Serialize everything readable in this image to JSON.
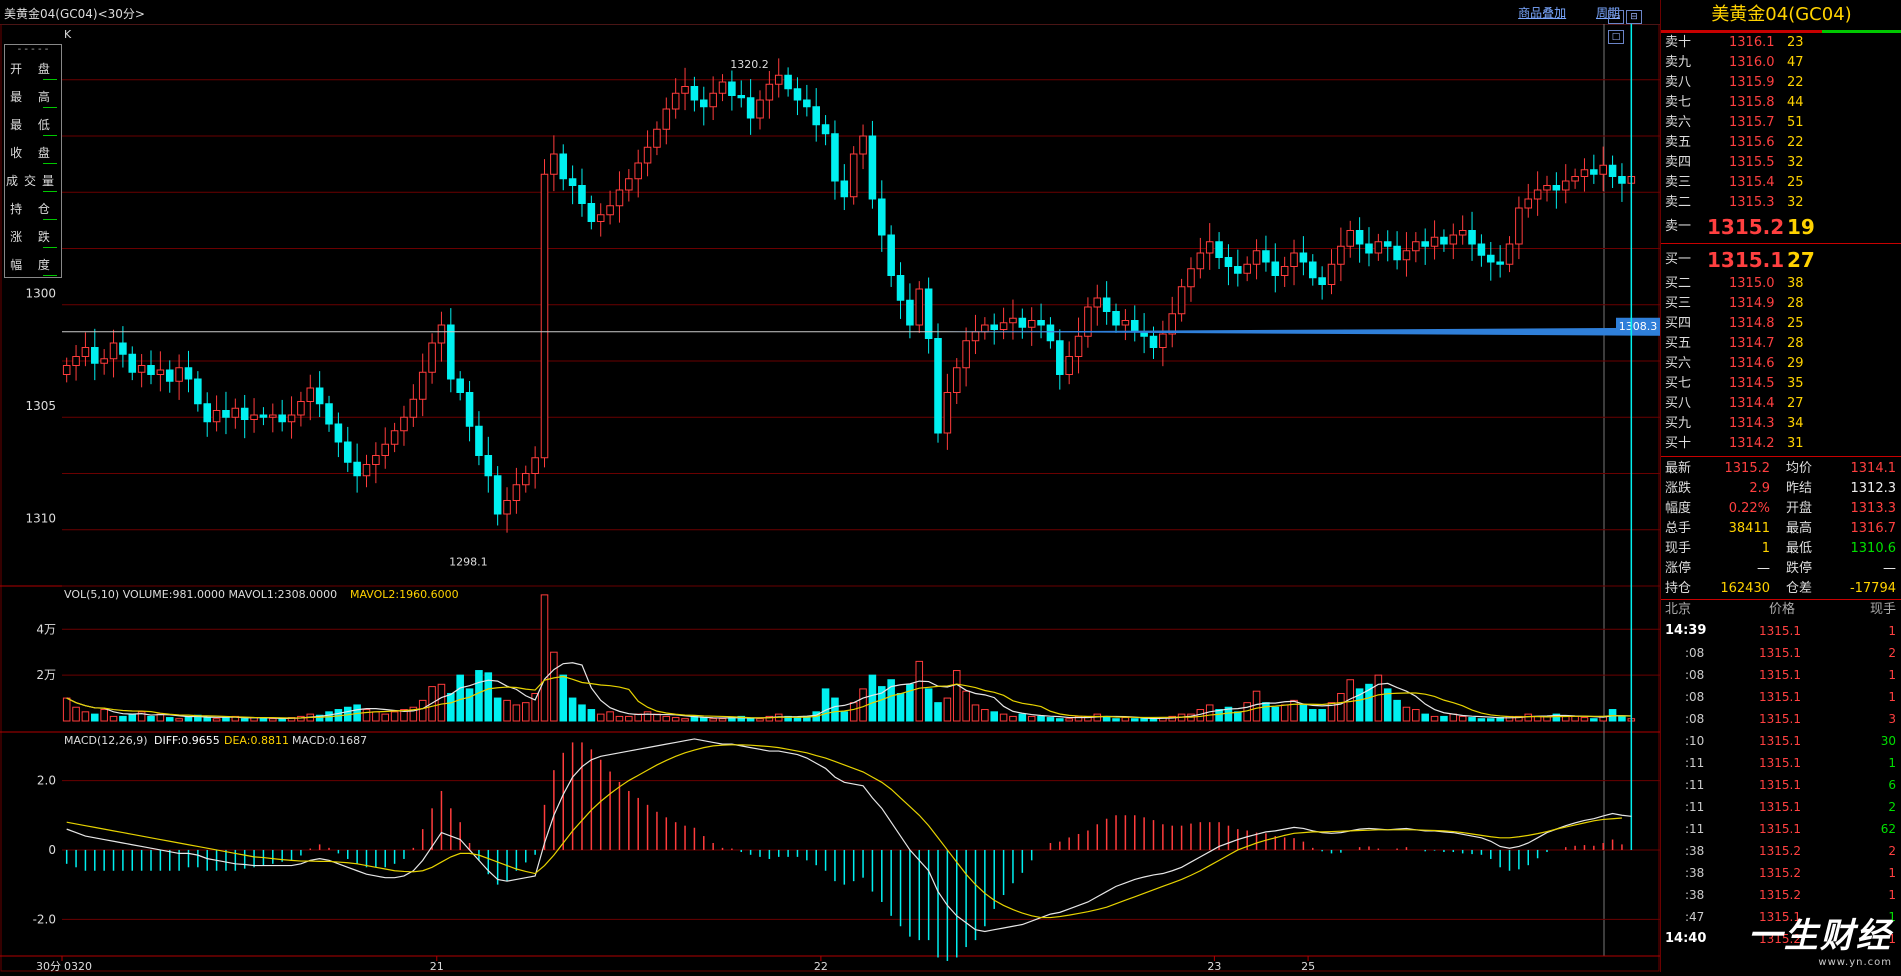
{
  "window": {
    "title": "美黄金04(GC04)<30分>",
    "link_overlay": "商品叠加",
    "link_period": "周期"
  },
  "legend": {
    "items": [
      "开 盘",
      "最 高",
      "最 低",
      "收 盘",
      "成交量",
      "持 仓",
      "涨 跌",
      "幅 度"
    ]
  },
  "main_chart": {
    "label": "K",
    "high_label": "1320.2",
    "low_label": "1298.1",
    "price_marker": "1308.3",
    "y_ticks": [
      "1310",
      "1305",
      "1300"
    ]
  },
  "volume_panel": {
    "header_a": "VOL(5,10) VOLUME:981.0000 MAVOL1:2308.0000",
    "header_b": "MAVOL2:1960.6000",
    "y_ticks": [
      "4万",
      "2万"
    ]
  },
  "macd_panel": {
    "header_a": "MACD(12,26,9)",
    "header_b": "DIFF:0.9655",
    "header_c": "DEA:0.8811",
    "header_d": "MACD:0.1687",
    "y_ticks": [
      "2.0",
      "0",
      "-2.0"
    ]
  },
  "x_axis": {
    "period": "30分",
    "labels": [
      "0320",
      "21",
      "22",
      "23",
      "25"
    ]
  },
  "quote": {
    "title": "美黄金04(GC04)",
    "asks": [
      {
        "label": "卖十",
        "price": "1316.1",
        "vol": "23"
      },
      {
        "label": "卖九",
        "price": "1316.0",
        "vol": "47"
      },
      {
        "label": "卖八",
        "price": "1315.9",
        "vol": "22"
      },
      {
        "label": "卖七",
        "price": "1315.8",
        "vol": "44"
      },
      {
        "label": "卖六",
        "price": "1315.7",
        "vol": "51"
      },
      {
        "label": "卖五",
        "price": "1315.6",
        "vol": "22"
      },
      {
        "label": "卖四",
        "price": "1315.5",
        "vol": "32"
      },
      {
        "label": "卖三",
        "price": "1315.4",
        "vol": "25"
      },
      {
        "label": "卖二",
        "price": "1315.3",
        "vol": "32"
      },
      {
        "label": "卖一",
        "price": "1315.2",
        "vol": "19"
      }
    ],
    "bids": [
      {
        "label": "买一",
        "price": "1315.1",
        "vol": "27"
      },
      {
        "label": "买二",
        "price": "1315.0",
        "vol": "38"
      },
      {
        "label": "买三",
        "price": "1314.9",
        "vol": "28"
      },
      {
        "label": "买四",
        "price": "1314.8",
        "vol": "25"
      },
      {
        "label": "买五",
        "price": "1314.7",
        "vol": "28"
      },
      {
        "label": "买六",
        "price": "1314.6",
        "vol": "29"
      },
      {
        "label": "买七",
        "price": "1314.5",
        "vol": "35"
      },
      {
        "label": "买八",
        "price": "1314.4",
        "vol": "27"
      },
      {
        "label": "买九",
        "price": "1314.3",
        "vol": "34"
      },
      {
        "label": "买十",
        "price": "1314.2",
        "vol": "31"
      }
    ],
    "stats": [
      {
        "l1": "最新",
        "v1": "1315.2",
        "c1": "red",
        "l2": "均价",
        "v2": "1314.1",
        "c2": "red"
      },
      {
        "l1": "涨跌",
        "v1": "2.9",
        "c1": "red",
        "l2": "昨结",
        "v2": "1312.3",
        "c2": "wht"
      },
      {
        "l1": "幅度",
        "v1": "0.22%",
        "c1": "red",
        "l2": "开盘",
        "v2": "1313.3",
        "c2": "red"
      },
      {
        "l1": "总手",
        "v1": "38411",
        "c1": "yel",
        "l2": "最高",
        "v2": "1316.7",
        "c2": "red"
      },
      {
        "l1": "现手",
        "v1": "1",
        "c1": "yel",
        "l2": "最低",
        "v2": "1310.6",
        "c2": "grn"
      },
      {
        "l1": "涨停",
        "v1": "—",
        "c1": "wht",
        "l2": "跌停",
        "v2": "—",
        "c2": "wht"
      },
      {
        "l1": "持仓",
        "v1": "162430",
        "c1": "yel",
        "l2": "仓差",
        "v2": "-17794",
        "c2": "yel"
      }
    ],
    "tick_header": {
      "time": "北京",
      "price": "价格",
      "vol": "现手"
    },
    "ticks": [
      {
        "time": "14:39",
        "price": "1315.1",
        "vol": "1",
        "c": "red",
        "bold": true
      },
      {
        "time": ":08",
        "price": "1315.1",
        "vol": "2",
        "c": "red"
      },
      {
        "time": ":08",
        "price": "1315.1",
        "vol": "1",
        "c": "red"
      },
      {
        "time": ":08",
        "price": "1315.1",
        "vol": "1",
        "c": "red"
      },
      {
        "time": ":08",
        "price": "1315.1",
        "vol": "3",
        "c": "red"
      },
      {
        "time": ":10",
        "price": "1315.1",
        "vol": "30",
        "c": "grn"
      },
      {
        "time": ":11",
        "price": "1315.1",
        "vol": "1",
        "c": "grn"
      },
      {
        "time": ":11",
        "price": "1315.1",
        "vol": "6",
        "c": "grn"
      },
      {
        "time": ":11",
        "price": "1315.1",
        "vol": "2",
        "c": "grn"
      },
      {
        "time": ":11",
        "price": "1315.1",
        "vol": "62",
        "c": "grn"
      },
      {
        "time": ":38",
        "price": "1315.2",
        "vol": "2",
        "c": "red"
      },
      {
        "time": ":38",
        "price": "1315.2",
        "vol": "1",
        "c": "red"
      },
      {
        "time": ":38",
        "price": "1315.2",
        "vol": "1",
        "c": "red"
      },
      {
        "time": ":47",
        "price": "1315.1",
        "vol": "1",
        "c": "grn"
      },
      {
        "time": "14:40",
        "price": "1315.2",
        "vol": "1",
        "c": "red",
        "bold": true
      }
    ],
    "watermark_main": "一生财经",
    "watermark_sub": "www.yn.com"
  },
  "colors": {
    "up": "#ff3c3c",
    "down": "#00f0f0",
    "diff": "#e6e6e6",
    "dea": "#e6d200",
    "grid": "#6a0000"
  },
  "chart_data": [
    {
      "type": "candlestick",
      "title": "美黄金04(GC04)<30分>",
      "ylim": [
        1297,
        1321
      ],
      "y_ticks": [
        1300,
        1305,
        1310
      ],
      "x_labels": [
        "0320",
        "21",
        "22",
        "23",
        "25"
      ],
      "price_line": 1308.3,
      "annotations": [
        {
          "label": "1320.2"
        },
        {
          "label": "1298.1"
        }
      ],
      "closes": [
        1306.8,
        1307.2,
        1307.6,
        1306.9,
        1307.1,
        1307.8,
        1307.3,
        1306.5,
        1306.8,
        1306.4,
        1306.6,
        1306.1,
        1306.7,
        1306.2,
        1305.1,
        1304.3,
        1304.8,
        1304.5,
        1304.9,
        1304.4,
        1304.6,
        1304.5,
        1304.6,
        1304.3,
        1304.6,
        1305.2,
        1305.8,
        1305.1,
        1304.2,
        1303.4,
        1302.5,
        1301.9,
        1302.4,
        1302.8,
        1303.3,
        1303.9,
        1304.5,
        1305.3,
        1306.5,
        1307.8,
        1308.6,
        1306.2,
        1305.6,
        1304.1,
        1302.8,
        1301.9,
        1300.2,
        1300.8,
        1301.5,
        1302.0,
        1302.7,
        1315.3,
        1316.2,
        1315.1,
        1314.8,
        1314.0,
        1313.2,
        1313.5,
        1313.9,
        1314.6,
        1315.1,
        1315.8,
        1316.5,
        1317.3,
        1318.2,
        1318.9,
        1319.2,
        1318.6,
        1318.3,
        1318.9,
        1319.4,
        1318.8,
        1318.7,
        1317.8,
        1318.6,
        1319.3,
        1319.7,
        1319.1,
        1318.6,
        1318.3,
        1317.5,
        1317.1,
        1315.0,
        1314.3,
        1316.2,
        1317.0,
        1314.2,
        1312.6,
        1310.8,
        1309.7,
        1308.6,
        1310.2,
        1308.0,
        1303.8,
        1305.6,
        1306.7,
        1307.9,
        1308.3,
        1308.6,
        1308.4,
        1308.7,
        1308.9,
        1308.5,
        1308.8,
        1308.6,
        1307.9,
        1306.4,
        1307.2,
        1308.1,
        1309.4,
        1309.8,
        1309.2,
        1308.6,
        1308.8,
        1308.3,
        1308.1,
        1307.6,
        1308.2,
        1309.1,
        1310.3,
        1311.1,
        1311.8,
        1312.3,
        1311.6,
        1311.2,
        1310.9,
        1311.3,
        1311.9,
        1311.4,
        1310.8,
        1311.2,
        1311.8,
        1311.4,
        1310.7,
        1310.4,
        1311.3,
        1312.1,
        1312.8,
        1312.2,
        1311.8,
        1312.3,
        1312.1,
        1311.5,
        1311.9,
        1312.3,
        1312.1,
        1312.5,
        1312.2,
        1312.6,
        1312.8,
        1312.2,
        1311.7,
        1311.4,
        1311.3,
        1312.2,
        1313.8,
        1314.2,
        1314.6,
        1314.8,
        1314.6,
        1315.0,
        1315.2,
        1315.5,
        1315.3,
        1315.7,
        1315.2,
        1314.9,
        1315.2
      ],
      "volume": {
        "title": "VOL(5,10)",
        "VOLUME": 981.0,
        "MAVOL1": 2308.0,
        "MAVOL2": 1960.6,
        "y_ticks": [
          "2万",
          "4万"
        ],
        "ylim": [
          0,
          58000
        ],
        "values": [
          10000,
          6000,
          4000,
          3000,
          5000,
          2000,
          2000,
          3000,
          4000,
          2000,
          3000,
          1500,
          1000,
          2000,
          2500,
          1500,
          1000,
          1500,
          2000,
          1000,
          1500,
          1000,
          1000,
          1000,
          1500,
          2000,
          3000,
          2500,
          4000,
          5000,
          6000,
          7000,
          5000,
          4000,
          3000,
          4000,
          5000,
          6000,
          9000,
          15000,
          16000,
          12000,
          20000,
          14000,
          22000,
          21000,
          10000,
          9000,
          7000,
          8000,
          12000,
          55000,
          30000,
          20000,
          10000,
          7000,
          5000,
          3000,
          4000,
          2000,
          2000,
          3000,
          4000,
          3000,
          2000,
          1500,
          1000,
          2000,
          1500,
          1000,
          1000,
          1500,
          2000,
          1000,
          1000,
          2000,
          3000,
          2000,
          1500,
          2000,
          4000,
          14000,
          10000,
          4000,
          8000,
          14000,
          20000,
          15000,
          18000,
          12000,
          16000,
          26000,
          14000,
          8000,
          10000,
          22000,
          13000,
          7000,
          5000,
          4000,
          3000,
          2000,
          3000,
          2000,
          2000,
          1500,
          1000,
          1000,
          2000,
          2000,
          3000,
          2000,
          1000,
          1500,
          1000,
          1000,
          1000,
          1500,
          2000,
          3000,
          3000,
          5000,
          7000,
          5000,
          6000,
          4000,
          8000,
          13000,
          8000,
          6000,
          7000,
          9000,
          7000,
          5000,
          5000,
          8000,
          12000,
          18000,
          14000,
          16000,
          20000,
          14000,
          9000,
          6000,
          5000,
          3000,
          2000,
          2000,
          3000,
          2000,
          1500,
          1000,
          1000,
          1500,
          2000,
          2000,
          3000,
          2000,
          2000,
          3000,
          2000,
          2000,
          1500,
          1000,
          2000,
          5000,
          2000,
          1000
        ]
      },
      "macd": {
        "title": "MACD(12,26,9)",
        "DIFF": 0.9655,
        "DEA": 0.8811,
        "MACD": 0.1687,
        "y_ticks": [
          2.0,
          0,
          -2.0
        ],
        "ylim": [
          -3.0,
          3.4
        ],
        "diff": [
          0.6,
          0.5,
          0.4,
          0.35,
          0.3,
          0.25,
          0.2,
          0.15,
          0.1,
          0.05,
          0.0,
          -0.05,
          -0.1,
          -0.1,
          -0.15,
          -0.25,
          -0.3,
          -0.35,
          -0.4,
          -0.42,
          -0.45,
          -0.45,
          -0.45,
          -0.45,
          -0.45,
          -0.4,
          -0.3,
          -0.25,
          -0.3,
          -0.4,
          -0.5,
          -0.6,
          -0.7,
          -0.75,
          -0.8,
          -0.8,
          -0.75,
          -0.6,
          -0.3,
          0.1,
          0.5,
          0.4,
          0.3,
          0.0,
          -0.3,
          -0.6,
          -0.85,
          -0.9,
          -0.85,
          -0.8,
          -0.75,
          0.2,
          1.0,
          1.6,
          2.1,
          2.4,
          2.6,
          2.7,
          2.75,
          2.8,
          2.85,
          2.9,
          2.95,
          3.0,
          3.05,
          3.1,
          3.15,
          3.2,
          3.15,
          3.1,
          3.05,
          3.05,
          3.0,
          2.95,
          2.9,
          2.85,
          2.85,
          2.8,
          2.75,
          2.65,
          2.5,
          2.35,
          2.1,
          1.95,
          1.9,
          1.85,
          1.5,
          1.2,
          0.8,
          0.4,
          0.0,
          -0.3,
          -0.6,
          -1.2,
          -1.6,
          -1.9,
          -2.1,
          -2.3,
          -2.35,
          -2.3,
          -2.25,
          -2.2,
          -2.15,
          -2.05,
          -1.95,
          -1.85,
          -1.8,
          -1.7,
          -1.6,
          -1.5,
          -1.35,
          -1.2,
          -1.05,
          -0.95,
          -0.85,
          -0.78,
          -0.72,
          -0.68,
          -0.6,
          -0.5,
          -0.35,
          -0.2,
          -0.05,
          0.1,
          0.2,
          0.3,
          0.38,
          0.45,
          0.52,
          0.55,
          0.6,
          0.65,
          0.62,
          0.55,
          0.5,
          0.48,
          0.5,
          0.55,
          0.6,
          0.62,
          0.6,
          0.58,
          0.6,
          0.62,
          0.58,
          0.55,
          0.55,
          0.52,
          0.5,
          0.45,
          0.4,
          0.35,
          0.25,
          0.1,
          0.05,
          0.1,
          0.2,
          0.35,
          0.5,
          0.6,
          0.7,
          0.78,
          0.85,
          0.9,
          0.98,
          1.05,
          1.0,
          0.97
        ],
        "dea": [
          0.8,
          0.75,
          0.7,
          0.65,
          0.6,
          0.55,
          0.5,
          0.45,
          0.4,
          0.35,
          0.3,
          0.25,
          0.2,
          0.15,
          0.1,
          0.05,
          0.0,
          -0.05,
          -0.1,
          -0.15,
          -0.2,
          -0.22,
          -0.25,
          -0.28,
          -0.3,
          -0.32,
          -0.32,
          -0.33,
          -0.33,
          -0.35,
          -0.37,
          -0.4,
          -0.45,
          -0.5,
          -0.55,
          -0.6,
          -0.62,
          -0.63,
          -0.6,
          -0.5,
          -0.35,
          -0.2,
          -0.1,
          -0.1,
          -0.15,
          -0.25,
          -0.35,
          -0.45,
          -0.55,
          -0.62,
          -0.68,
          -0.45,
          -0.15,
          0.2,
          0.55,
          0.85,
          1.15,
          1.4,
          1.62,
          1.82,
          2.0,
          2.15,
          2.3,
          2.45,
          2.58,
          2.7,
          2.8,
          2.88,
          2.95,
          3.0,
          3.02,
          3.03,
          3.03,
          3.02,
          3.0,
          2.98,
          2.95,
          2.9,
          2.85,
          2.8,
          2.72,
          2.65,
          2.55,
          2.45,
          2.35,
          2.25,
          2.1,
          1.95,
          1.75,
          1.5,
          1.25,
          1.0,
          0.7,
          0.35,
          0.0,
          -0.35,
          -0.7,
          -1.0,
          -1.25,
          -1.45,
          -1.6,
          -1.72,
          -1.82,
          -1.9,
          -1.95,
          -1.95,
          -1.92,
          -1.88,
          -1.83,
          -1.78,
          -1.72,
          -1.65,
          -1.55,
          -1.45,
          -1.35,
          -1.25,
          -1.15,
          -1.05,
          -0.95,
          -0.85,
          -0.73,
          -0.6,
          -0.45,
          -0.3,
          -0.15,
          0.0,
          0.1,
          0.2,
          0.28,
          0.35,
          0.42,
          0.48,
          0.5,
          0.52,
          0.52,
          0.53,
          0.54,
          0.55,
          0.56,
          0.57,
          0.58,
          0.58,
          0.58,
          0.58,
          0.58,
          0.57,
          0.56,
          0.55,
          0.53,
          0.5,
          0.46,
          0.42,
          0.38,
          0.35,
          0.35,
          0.38,
          0.42,
          0.47,
          0.53,
          0.6,
          0.66,
          0.72,
          0.78,
          0.84,
          0.88,
          0.9,
          0.92
        ]
      }
    }
  ]
}
